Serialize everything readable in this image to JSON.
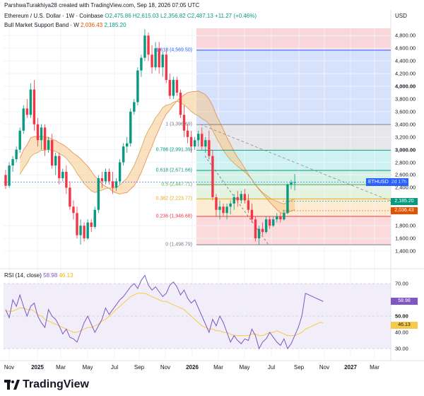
{
  "header": {
    "credit": "ParshwaTurakhiya28 created with TradingView.com, Sep 18, 2026 07:05 UTC",
    "symbol": "Ethereum / U.S. Dollar · 1W · Coinbase",
    "ohlc": {
      "o": "O2,475.86",
      "h": "H2,615.03",
      "l": "L2,356.82",
      "c": "C2,487.13",
      "chg": "+11.27 (+0.46%)"
    },
    "indicator": "Bull Market Support Band · W",
    "indicator_values": [
      "2,036.43",
      "2,185.20"
    ]
  },
  "price_axis": {
    "currency": "USD",
    "ticks": [
      {
        "label": "4,800.00",
        "value": 4800,
        "bold": false
      },
      {
        "label": "4,600.00",
        "value": 4600,
        "bold": false
      },
      {
        "label": "4,400.00",
        "value": 4400,
        "bold": false
      },
      {
        "label": "4,200.00",
        "value": 4200,
        "bold": false
      },
      {
        "label": "4,000.00",
        "value": 4000,
        "bold": true
      },
      {
        "label": "3,800.00",
        "value": 3800,
        "bold": false
      },
      {
        "label": "3,600.00",
        "value": 3600,
        "bold": false
      },
      {
        "label": "3,400.00",
        "value": 3400,
        "bold": false
      },
      {
        "label": "3,200.00",
        "value": 3200,
        "bold": false
      },
      {
        "label": "3,000.00",
        "value": 3000,
        "bold": true
      },
      {
        "label": "2,800.00",
        "value": 2800,
        "bold": false
      },
      {
        "label": "2,600.00",
        "value": 2600,
        "bold": false
      },
      {
        "label": "2,400.00",
        "value": 2400,
        "bold": false
      },
      {
        "label": "1,800.00",
        "value": 1800,
        "bold": false
      },
      {
        "label": "1,600.00",
        "value": 1600,
        "bold": false
      },
      {
        "label": "1,400.00",
        "value": 1400,
        "bold": false
      }
    ],
    "tags": [
      {
        "label": "2,185.20",
        "value": 2185.2,
        "color": "#089981"
      },
      {
        "label": "2,036.43",
        "value": 2036.43,
        "color": "#e65100"
      }
    ],
    "eth_tag": {
      "symbol": "ETHUSD",
      "countdown": "2d 17h"
    }
  },
  "fib_levels": [
    {
      "label": "1.618 (4,569.50)",
      "value": 4569.5,
      "color": "#2962ff"
    },
    {
      "label": "1 (3,396.69)",
      "value": 3396.69,
      "color": "#787b86"
    },
    {
      "label": "0.786 (2,991.39)",
      "value": 2991.39,
      "color": "#089981"
    },
    {
      "label": "0.618 (2,671.66)",
      "value": 2671.66,
      "color": "#089981"
    },
    {
      "label": "0.5 (2,447.71)",
      "value": 2447.71,
      "color": "#4caf50"
    },
    {
      "label": "0.382 (2,223.77)",
      "value": 2223.77,
      "color": "#e6a817"
    },
    {
      "label": "0.236 (1,946.68)",
      "value": 1946.68,
      "color": "#f23645"
    },
    {
      "label": "0 (1,498.79)",
      "value": 1498.79,
      "color": "#787b86"
    }
  ],
  "rsi": {
    "title": "RSI (14, close)",
    "value": "58.98",
    "ma_value": "46.13",
    "ticks": [
      {
        "label": "70.00",
        "value": 70
      },
      {
        "label": "50.00",
        "value": 50
      },
      {
        "label": "40.00",
        "value": 40
      },
      {
        "label": "30.00",
        "value": 30
      }
    ],
    "series": [
      54,
      49,
      60,
      56,
      63,
      56,
      50,
      56,
      58,
      50,
      46,
      43,
      54,
      50,
      48,
      44,
      39,
      42,
      37,
      36,
      34,
      40,
      46,
      50,
      45,
      40,
      44,
      48,
      55,
      51,
      54,
      57,
      60,
      62,
      65,
      68,
      70,
      67,
      72,
      75,
      69,
      66,
      68,
      65,
      62,
      64,
      69,
      71,
      68,
      63,
      66,
      61,
      58,
      60,
      55,
      50,
      45,
      40,
      48,
      44,
      50,
      46,
      40,
      34,
      38,
      35,
      33,
      36,
      35,
      42,
      38,
      30,
      34,
      36,
      40,
      37,
      34,
      32,
      36,
      30,
      33,
      38,
      43,
      50,
      64,
      63,
      62,
      61,
      60,
      59
    ],
    "ma": [
      53,
      53,
      53,
      54,
      55,
      55,
      54,
      54,
      53,
      51,
      50,
      48,
      47,
      46,
      45,
      44,
      43,
      42,
      41,
      40,
      40,
      41,
      42,
      43,
      43,
      44,
      45,
      47,
      48,
      50,
      52,
      54,
      56,
      58,
      60,
      62,
      63,
      64,
      64,
      64,
      63,
      62,
      61,
      60,
      59,
      59,
      58,
      57,
      56,
      55,
      54,
      52,
      50,
      48,
      46,
      44,
      43,
      42,
      42,
      41,
      41,
      40,
      40,
      39,
      38,
      38,
      38,
      38,
      38,
      39,
      39,
      38,
      38,
      39,
      40,
      40,
      41,
      40,
      39,
      38,
      38,
      38,
      39,
      40,
      42,
      43,
      44,
      45,
      46,
      46
    ]
  },
  "time_axis": [
    {
      "label": "Nov",
      "bold": false
    },
    {
      "label": "2025",
      "bold": true
    },
    {
      "label": "Mar",
      "bold": false
    },
    {
      "label": "May",
      "bold": false
    },
    {
      "label": "Jul",
      "bold": false
    },
    {
      "label": "Sep",
      "bold": false
    },
    {
      "label": "Nov",
      "bold": false
    },
    {
      "label": "2026",
      "bold": true
    },
    {
      "label": "Mar",
      "bold": false
    },
    {
      "label": "May",
      "bold": false
    },
    {
      "label": "Jul",
      "bold": false
    },
    {
      "label": "Sep",
      "bold": false
    },
    {
      "label": "Nov",
      "bold": false
    },
    {
      "label": "2027",
      "bold": true
    },
    {
      "label": "Mar",
      "bold": false
    }
  ],
  "brand": "TradingView",
  "chart_data": {
    "type": "candlestick",
    "series_name": "ETHUSD",
    "interval": "1W",
    "ylim": [
      1400,
      4900
    ],
    "candles": [
      [
        2600,
        2680,
        2380,
        2430
      ],
      [
        2430,
        2800,
        2400,
        2750
      ],
      [
        2750,
        2900,
        2650,
        2850
      ],
      [
        2850,
        3050,
        2800,
        3000
      ],
      [
        3000,
        3350,
        2950,
        3300
      ],
      [
        3300,
        3700,
        3250,
        3650
      ],
      [
        3650,
        3800,
        3500,
        3550
      ],
      [
        3550,
        4050,
        3500,
        3950
      ],
      [
        3950,
        4100,
        3300,
        3400
      ],
      [
        3400,
        3500,
        3050,
        3150
      ],
      [
        3150,
        3400,
        3000,
        3350
      ],
      [
        3350,
        3400,
        2900,
        3000
      ],
      [
        3000,
        3200,
        2950,
        3150
      ],
      [
        3150,
        3250,
        2700,
        2750
      ],
      [
        2750,
        2950,
        2600,
        2900
      ],
      [
        2900,
        2950,
        2450,
        2550
      ],
      [
        2550,
        2700,
        2500,
        2650
      ],
      [
        2650,
        2750,
        2300,
        2400
      ],
      [
        2400,
        2500,
        2050,
        2100
      ],
      [
        2100,
        2200,
        1900,
        2000
      ],
      [
        2000,
        2100,
        1600,
        1650
      ],
      [
        1650,
        1900,
        1500,
        1800
      ],
      [
        1800,
        1850,
        1550,
        1600
      ],
      [
        1600,
        1900,
        1580,
        1850
      ],
      [
        1850,
        1900,
        1700,
        1780
      ],
      [
        1780,
        2100,
        1750,
        2050
      ],
      [
        2050,
        2600,
        2000,
        2550
      ],
      [
        2550,
        2650,
        2400,
        2500
      ],
      [
        2500,
        2700,
        2450,
        2650
      ],
      [
        2650,
        2700,
        2450,
        2500
      ],
      [
        2500,
        2650,
        2300,
        2400
      ],
      [
        2400,
        2550,
        2350,
        2500
      ],
      [
        2500,
        2850,
        2450,
        2800
      ],
      [
        2800,
        3100,
        2750,
        3050
      ],
      [
        3050,
        3200,
        2950,
        3100
      ],
      [
        3100,
        3650,
        3050,
        3600
      ],
      [
        3600,
        3800,
        3550,
        3750
      ],
      [
        3750,
        4300,
        3700,
        4250
      ],
      [
        4250,
        4500,
        4150,
        4450
      ],
      [
        4450,
        4900,
        4400,
        4800
      ],
      [
        4800,
        4850,
        4400,
        4500
      ],
      [
        4500,
        4650,
        4200,
        4300
      ],
      [
        4300,
        4700,
        4250,
        4600
      ],
      [
        4600,
        4700,
        4200,
        4300
      ],
      [
        4300,
        4550,
        4150,
        4500
      ],
      [
        4500,
        4600,
        4050,
        4100
      ],
      [
        4100,
        4200,
        3800,
        3850
      ],
      [
        3850,
        4150,
        3800,
        4100
      ],
      [
        4100,
        4150,
        3850,
        3900
      ],
      [
        3900,
        3950,
        3500,
        3550
      ],
      [
        3550,
        3700,
        3200,
        3300
      ],
      [
        3300,
        3400,
        3100,
        3200
      ],
      [
        3200,
        3300,
        2950,
        3050
      ],
      [
        3050,
        3200,
        3000,
        3150
      ],
      [
        3150,
        3300,
        3050,
        3250
      ],
      [
        3250,
        3350,
        3000,
        3050
      ],
      [
        3050,
        3200,
        2950,
        3150
      ],
      [
        3150,
        3300,
        2850,
        2900
      ],
      [
        2900,
        3000,
        2200,
        2250
      ],
      [
        2250,
        2300,
        1950,
        2050
      ],
      [
        2050,
        2200,
        1900,
        2100
      ],
      [
        2100,
        2150,
        1950,
        2000
      ],
      [
        2000,
        2150,
        1900,
        2100
      ],
      [
        2100,
        2200,
        1980,
        2150
      ],
      [
        2150,
        2300,
        2050,
        2250
      ],
      [
        2250,
        2350,
        2100,
        2200
      ],
      [
        2200,
        2350,
        2150,
        2300
      ],
      [
        2300,
        2380,
        2150,
        2200
      ],
      [
        2200,
        2300,
        2000,
        2050
      ],
      [
        2050,
        2150,
        1850,
        1900
      ],
      [
        1900,
        1950,
        1550,
        1600
      ],
      [
        1600,
        1800,
        1500,
        1750
      ],
      [
        1750,
        1850,
        1650,
        1700
      ],
      [
        1700,
        1950,
        1680,
        1900
      ],
      [
        1900,
        1950,
        1750,
        1800
      ],
      [
        1800,
        1950,
        1780,
        1900
      ],
      [
        1900,
        2000,
        1850,
        1950
      ],
      [
        1950,
        2000,
        1850,
        1900
      ],
      [
        1900,
        2050,
        1880,
        2000
      ],
      [
        2000,
        2470,
        1980,
        2450
      ],
      [
        2450,
        2520,
        2380,
        2480
      ],
      [
        2476,
        2615,
        2357,
        2487
      ]
    ]
  }
}
